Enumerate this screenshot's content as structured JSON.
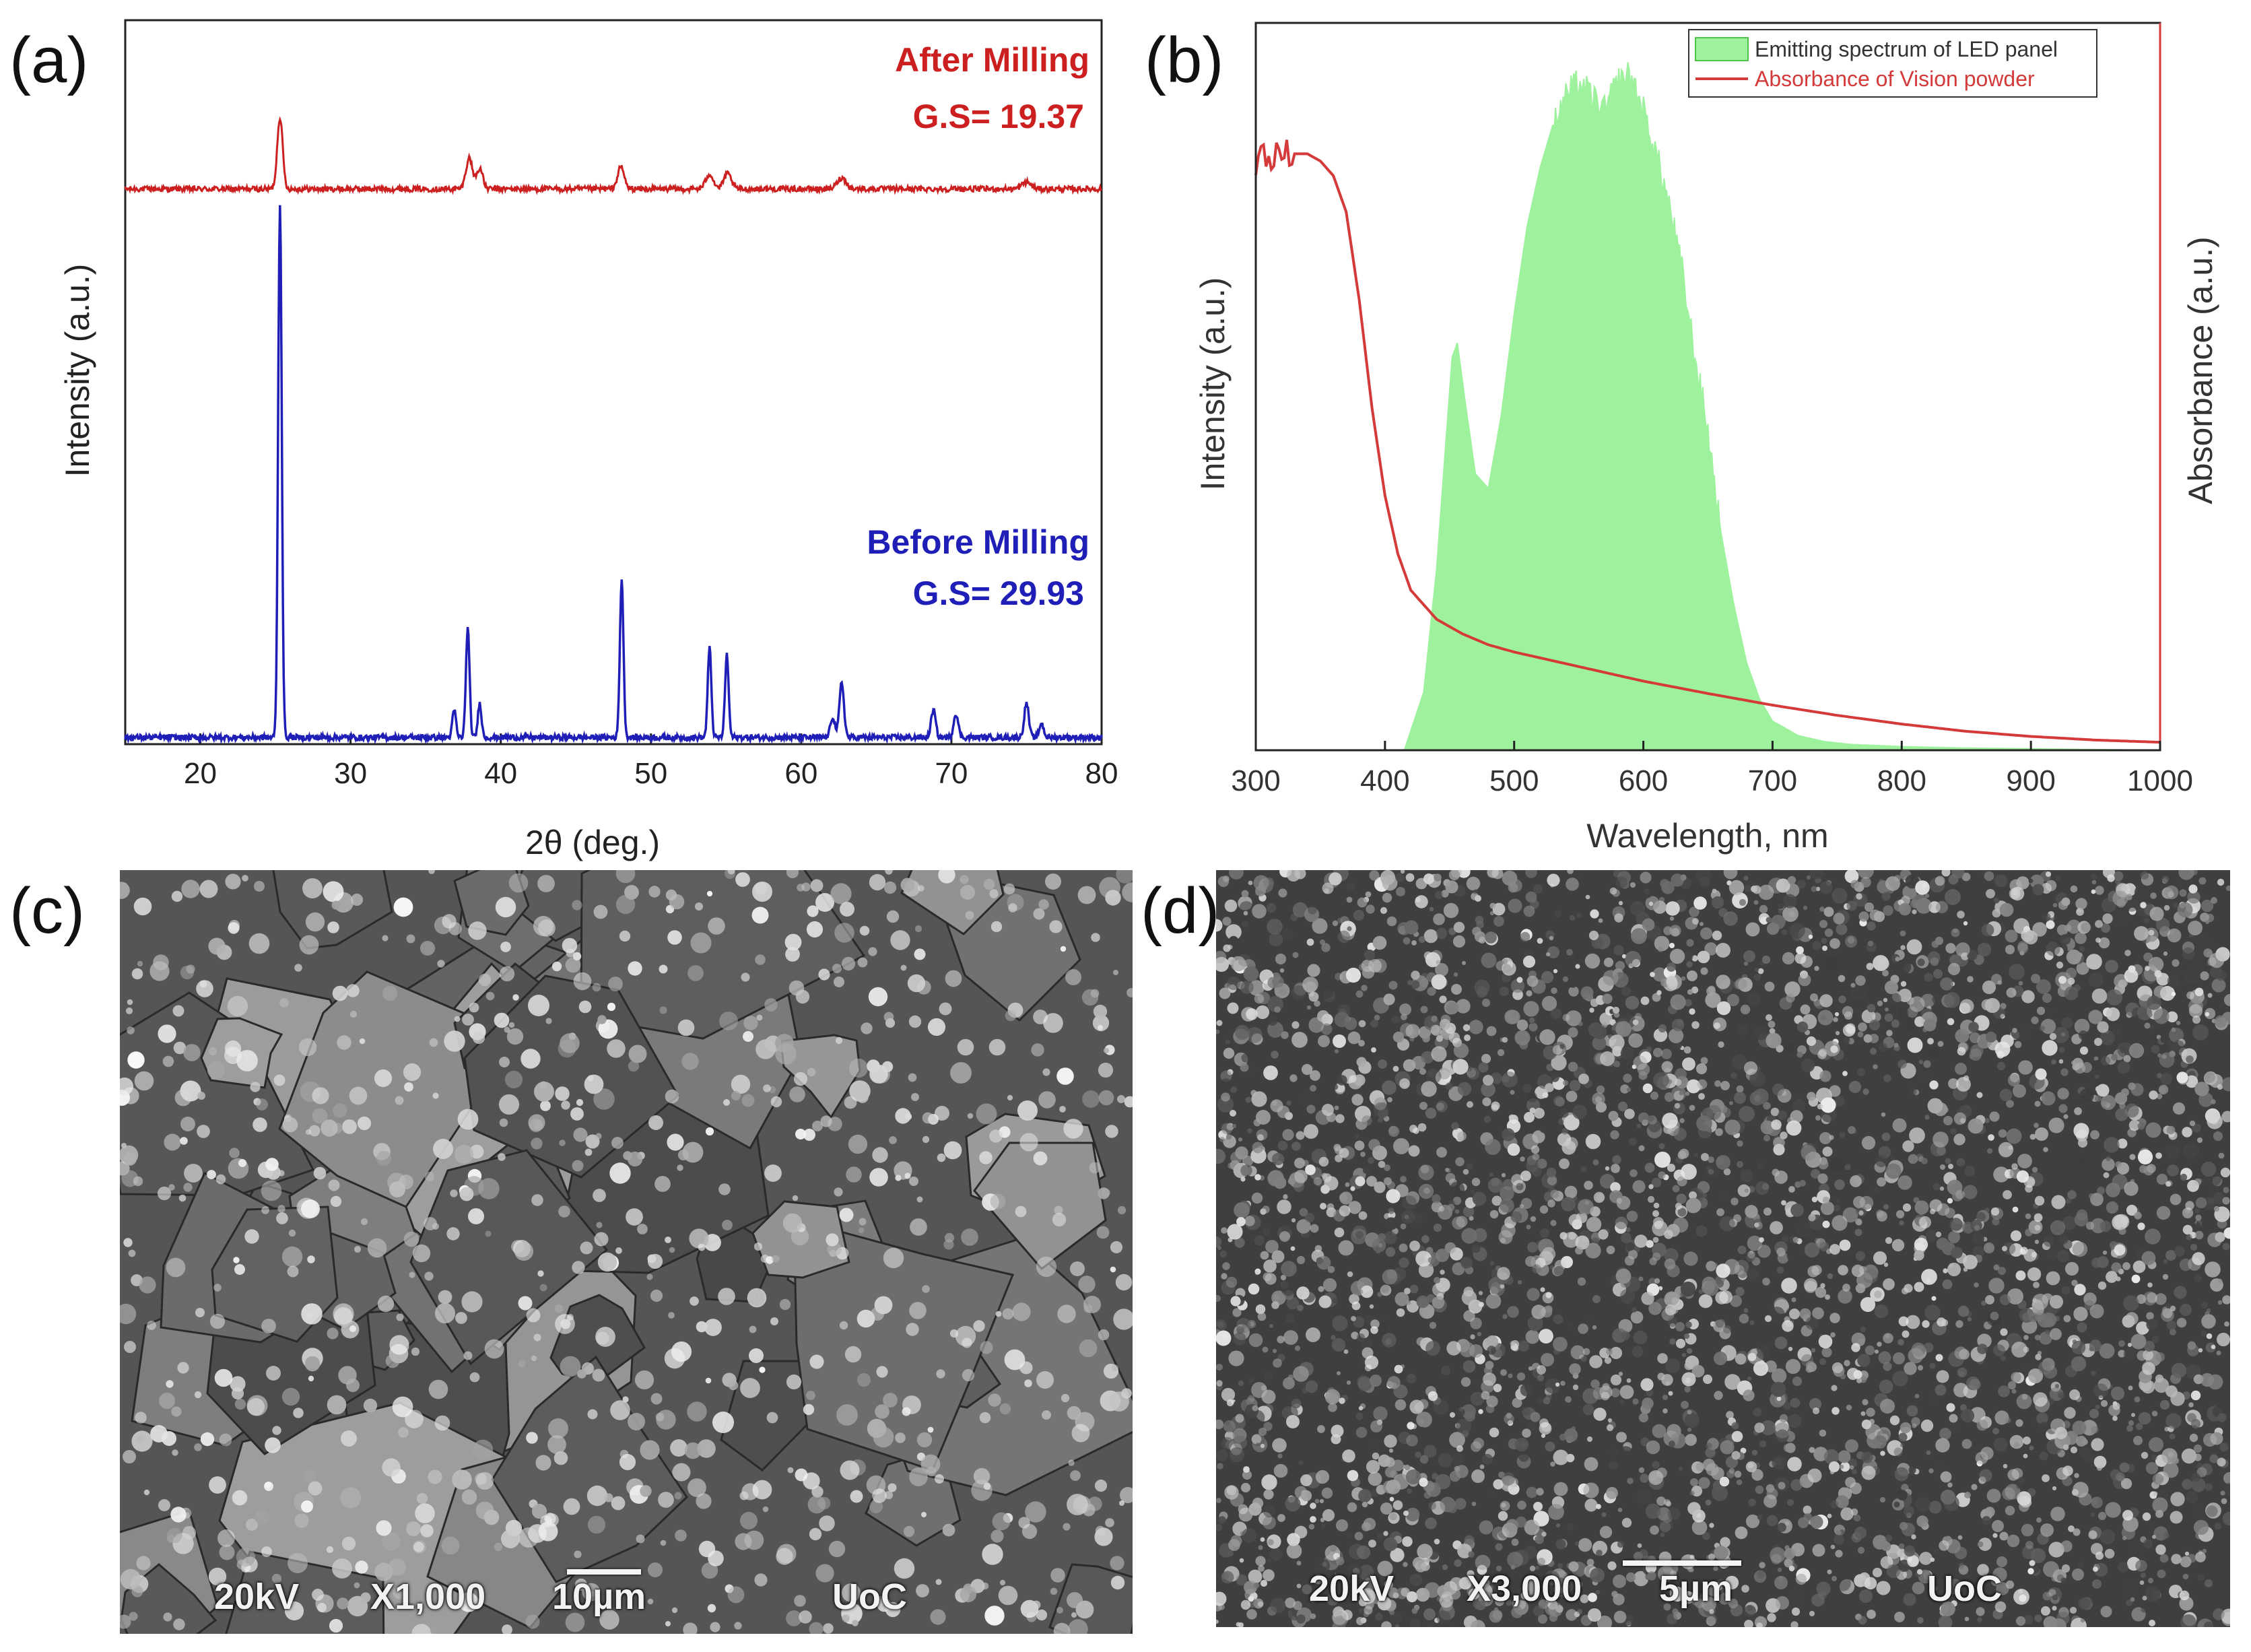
{
  "panels": {
    "a": "(a)",
    "b": "(b)",
    "c": "(c)",
    "d": "(d)"
  },
  "chart_data": [
    {
      "type": "line",
      "panel": "(a)",
      "xlabel": "2θ (deg.)",
      "ylabel": "Intensity (a.u.)",
      "xlim": [
        15,
        80
      ],
      "xticks": [
        "20",
        "30",
        "40",
        "50",
        "60",
        "70",
        "80"
      ],
      "grid": false,
      "annotations": {
        "after_title": "After Milling",
        "after_gs": "G.S= 19.37",
        "before_title": "Before Milling",
        "before_gs": "G.S= 29.93"
      },
      "colors": {
        "after": "#cc1f1f",
        "before": "#1f1fb8"
      },
      "series": [
        {
          "key": "after",
          "baseline": 0.8,
          "peaks": [
            [
              25.3,
              0.105,
              0.18
            ],
            [
              37.9,
              0.045,
              0.22
            ],
            [
              38.6,
              0.03,
              0.2
            ],
            [
              48.0,
              0.032,
              0.22
            ],
            [
              53.9,
              0.022,
              0.25
            ],
            [
              55.1,
              0.022,
              0.25
            ],
            [
              62.7,
              0.016,
              0.3
            ],
            [
              75.0,
              0.01,
              0.3
            ]
          ]
        },
        {
          "key": "before",
          "baseline": 0.0,
          "peaks": [
            [
              25.3,
              0.78,
              0.12
            ],
            [
              36.9,
              0.04,
              0.12
            ],
            [
              37.8,
              0.16,
              0.12
            ],
            [
              38.6,
              0.05,
              0.12
            ],
            [
              48.05,
              0.23,
              0.12
            ],
            [
              53.9,
              0.13,
              0.12
            ],
            [
              55.05,
              0.12,
              0.12
            ],
            [
              62.1,
              0.03,
              0.15
            ],
            [
              62.7,
              0.08,
              0.15
            ],
            [
              68.8,
              0.04,
              0.15
            ],
            [
              70.3,
              0.035,
              0.15
            ],
            [
              75.0,
              0.05,
              0.15
            ],
            [
              76.0,
              0.02,
              0.15
            ]
          ]
        }
      ]
    },
    {
      "type": "area",
      "panel": "(b)",
      "xlabel": "Wavelength, nm",
      "ylabel_left": "Intensity (a.u.)",
      "ylabel_right": "Absorbance (a.u.)",
      "xlim": [
        300,
        1000
      ],
      "xticks": [
        "300",
        "400",
        "500",
        "600",
        "700",
        "800",
        "900",
        "1000"
      ],
      "grid": false,
      "legend_position": "top-right",
      "colors": {
        "emission_fill": "#9ef29e",
        "emission_edge": "#4cc44c",
        "absorbance": "#d43a3a"
      },
      "series": [
        {
          "name": "Emitting spectrum of LED panel",
          "x": [
            415,
            430,
            440,
            447,
            452,
            456,
            462,
            470,
            480,
            490,
            500,
            510,
            520,
            530,
            540,
            550,
            560,
            570,
            580,
            590,
            600,
            610,
            620,
            630,
            640,
            650,
            660,
            670,
            680,
            690,
            700,
            720,
            740,
            760,
            800,
            850,
            900,
            1000
          ],
          "values": [
            0.0,
            0.08,
            0.25,
            0.42,
            0.54,
            0.56,
            0.48,
            0.38,
            0.36,
            0.46,
            0.6,
            0.72,
            0.8,
            0.86,
            0.9,
            0.92,
            0.9,
            0.88,
            0.92,
            0.93,
            0.88,
            0.82,
            0.75,
            0.66,
            0.54,
            0.44,
            0.3,
            0.2,
            0.12,
            0.07,
            0.04,
            0.02,
            0.012,
            0.008,
            0.005,
            0.003,
            0.002,
            0.0
          ]
        },
        {
          "name": "Absorbance of Vision powder",
          "x": [
            300,
            320,
            340,
            350,
            360,
            370,
            380,
            390,
            400,
            410,
            420,
            440,
            460,
            480,
            500,
            550,
            600,
            650,
            700,
            750,
            800,
            850,
            900,
            950,
            1000
          ],
          "values": [
            0.81,
            0.82,
            0.82,
            0.81,
            0.79,
            0.74,
            0.62,
            0.47,
            0.35,
            0.27,
            0.22,
            0.18,
            0.16,
            0.145,
            0.135,
            0.115,
            0.095,
            0.078,
            0.062,
            0.048,
            0.036,
            0.026,
            0.019,
            0.014,
            0.011
          ]
        }
      ]
    }
  ],
  "sem_c": {
    "voltage": "20kV",
    "magnification": "X1,000",
    "scale": "10µm",
    "lab": "UoC"
  },
  "sem_d": {
    "voltage": "20kV",
    "magnification": "X3,000",
    "scale": "5µm",
    "lab": "UoC"
  }
}
